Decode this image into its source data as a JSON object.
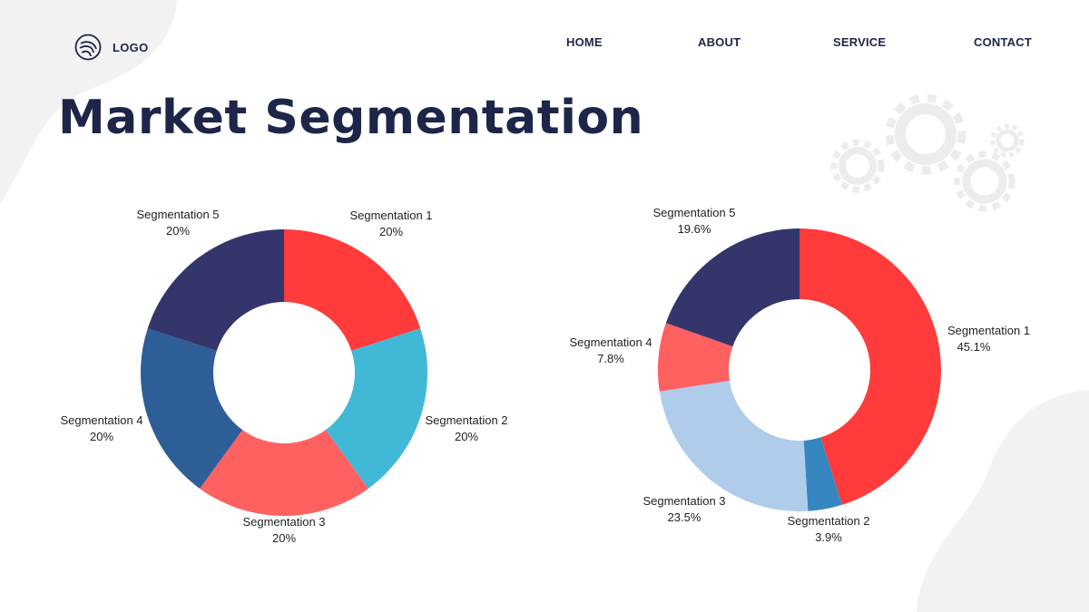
{
  "header": {
    "logo_text": "LOGO",
    "nav": [
      {
        "label": "HOME"
      },
      {
        "label": "ABOUT"
      },
      {
        "label": "SERVICE"
      },
      {
        "label": "CONTACT"
      }
    ]
  },
  "title": "Market Segmentation",
  "colors": {
    "text": "#1d2648",
    "segment_navy": "#33356b",
    "segment_red": "#ff3b3b",
    "segment_cyan": "#42b8d7",
    "segment_coral": "#ff6060",
    "segment_blue": "#2d5e98",
    "segment_lightblue": "#afcdea",
    "segment_mid_blue": "#3687c0",
    "background_shape": "#f2f2f2"
  },
  "chart_data": [
    {
      "type": "pie",
      "donut": true,
      "slices": [
        {
          "name": "Segmentation 1",
          "value": 20,
          "label": "20%",
          "color": "#ff3b3b"
        },
        {
          "name": "Segmentation 2",
          "value": 20,
          "label": "20%",
          "color": "#42b8d7"
        },
        {
          "name": "Segmentation 3",
          "value": 20,
          "label": "20%",
          "color": "#ff6060"
        },
        {
          "name": "Segmentation 4",
          "value": 20,
          "label": "20%",
          "color": "#2d5e98"
        },
        {
          "name": "Segmentation 5",
          "value": 20,
          "label": "20%",
          "color": "#33356b"
        }
      ]
    },
    {
      "type": "pie",
      "donut": true,
      "slices": [
        {
          "name": "Segmentation 1",
          "value": 45.1,
          "label": "45.1%",
          "color": "#ff3b3b"
        },
        {
          "name": "Segmentation 2",
          "value": 3.9,
          "label": "3.9%",
          "color": "#3687c0"
        },
        {
          "name": "Segmentation 3",
          "value": 23.5,
          "label": "23.5%",
          "color": "#afcdea"
        },
        {
          "name": "Segmentation 4",
          "value": 7.8,
          "label": "7.8%",
          "color": "#ff6060"
        },
        {
          "name": "Segmentation 5",
          "value": 19.6,
          "label": "19.6%",
          "color": "#33356b"
        }
      ]
    }
  ]
}
